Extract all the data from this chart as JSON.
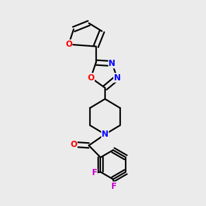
{
  "background_color": "#ebebeb",
  "bond_color": "#000000",
  "atom_colors": {
    "O": "#ff0000",
    "N": "#0000ff",
    "F": "#cc00cc",
    "C": "#000000"
  },
  "lw": 1.6
}
